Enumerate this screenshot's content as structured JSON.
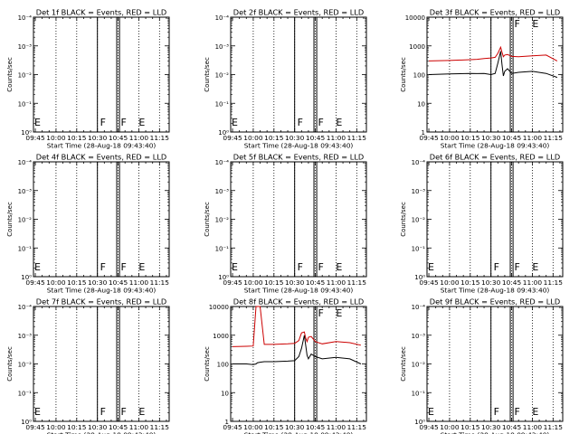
{
  "figure": {
    "x_ticks": [
      "09:45",
      "10:00",
      "10:15",
      "10:30",
      "10:45",
      "11:00",
      "11:15"
    ],
    "x_label": "Start Time (28-Aug-18 09:43:40)",
    "y_label": "Counts/sec",
    "log_tick_labels": [
      "1",
      "10",
      "100",
      "1000",
      "10000"
    ],
    "empty_tick_labels": [
      "10⁰",
      "10⁻¹",
      "10⁻²",
      "10⁻³",
      "10⁻⁴"
    ],
    "colors": {
      "events": "#000000",
      "lld": "#cc0000"
    }
  },
  "chart_data": [
    {
      "type": "line",
      "title": "Det 1f BLACK = Events, RED = LLD",
      "y_scale": "log",
      "has_data": false,
      "x": [],
      "series": [],
      "markers": [
        {
          "x": "10:30",
          "label": "F"
        },
        {
          "x": "10:45",
          "label": "F"
        },
        {
          "x": "10:58",
          "label": "E"
        },
        {
          "x": "09:43:40",
          "label": "E"
        }
      ]
    },
    {
      "type": "line",
      "title": "Det 2f BLACK = Events, RED = LLD",
      "y_scale": "log",
      "has_data": false,
      "x": [],
      "series": [],
      "markers": [
        {
          "x": "10:30",
          "label": "F"
        },
        {
          "x": "10:45",
          "label": "F"
        },
        {
          "x": "10:58",
          "label": "E"
        },
        {
          "x": "09:43:40",
          "label": "E"
        }
      ]
    },
    {
      "type": "line",
      "title": "Det 3f BLACK = Events, RED = LLD",
      "y_scale": "log",
      "ylim": [
        1,
        10000
      ],
      "has_data": true,
      "x": [
        "09:45",
        "10:00",
        "10:15",
        "10:20",
        "10:25",
        "10:30",
        "10:33",
        "10:35",
        "10:37",
        "10:38",
        "10:39",
        "10:40",
        "10:42",
        "10:45",
        "10:50",
        "11:00",
        "11:10",
        "11:18"
      ],
      "series": [
        {
          "values": [
            100,
            105,
            110,
            108,
            110,
            100,
            110,
            250,
            650,
            220,
            90,
            130,
            160,
            110,
            120,
            130,
            110,
            80
          ]
        },
        {
          "values": [
            300,
            310,
            330,
            340,
            360,
            380,
            400,
            550,
            900,
            600,
            420,
            480,
            500,
            430,
            420,
            450,
            480,
            300
          ]
        }
      ],
      "markers": [
        {
          "x": "10:30",
          "label": ""
        },
        {
          "x": "10:45",
          "label": "F"
        },
        {
          "x": "10:58",
          "label": "E"
        }
      ]
    },
    {
      "type": "line",
      "title": "Det 4f BLACK = Events, RED = LLD",
      "y_scale": "log",
      "has_data": false,
      "x": [],
      "series": [],
      "markers": [
        {
          "x": "10:30",
          "label": "F"
        },
        {
          "x": "10:45",
          "label": "F"
        },
        {
          "x": "10:58",
          "label": "E"
        },
        {
          "x": "09:43:40",
          "label": "E"
        }
      ]
    },
    {
      "type": "line",
      "title": "Det 5f BLACK = Events, RED = LLD",
      "y_scale": "log",
      "has_data": false,
      "x": [],
      "series": [],
      "markers": [
        {
          "x": "10:30",
          "label": "F"
        },
        {
          "x": "10:45",
          "label": "F"
        },
        {
          "x": "10:58",
          "label": "E"
        },
        {
          "x": "09:43:40",
          "label": "E"
        }
      ]
    },
    {
      "type": "line",
      "title": "Det 6f BLACK = Events, RED = LLD",
      "y_scale": "log",
      "has_data": false,
      "x": [],
      "series": [],
      "markers": [
        {
          "x": "10:30",
          "label": "F"
        },
        {
          "x": "10:45",
          "label": "F"
        },
        {
          "x": "10:58",
          "label": "E"
        },
        {
          "x": "09:43:40",
          "label": "E"
        }
      ]
    },
    {
      "type": "line",
      "title": "Det 7f BLACK = Events, RED = LLD",
      "y_scale": "log",
      "has_data": false,
      "x": [],
      "series": [],
      "markers": [
        {
          "x": "10:30",
          "label": "F"
        },
        {
          "x": "10:45",
          "label": "F"
        },
        {
          "x": "10:58",
          "label": "E"
        },
        {
          "x": "09:43:40",
          "label": "E"
        }
      ]
    },
    {
      "type": "line",
      "title": "Det 8f BLACK = Events, RED = LLD",
      "y_scale": "log",
      "ylim": [
        1,
        10000
      ],
      "has_data": true,
      "x": [
        "09:45",
        "09:55",
        "10:00",
        "10:02",
        "10:03",
        "10:05",
        "10:08",
        "10:15",
        "10:25",
        "10:30",
        "10:33",
        "10:35",
        "10:37",
        "10:38",
        "10:39",
        "10:40",
        "10:42",
        "10:45",
        "10:50",
        "11:00",
        "11:10",
        "11:18"
      ],
      "series": [
        {
          "values": [
            100,
            100,
            95,
            100,
            110,
            115,
            120,
            120,
            125,
            130,
            180,
            350,
            1000,
            450,
            200,
            150,
            220,
            180,
            150,
            170,
            150,
            100
          ]
        },
        {
          "values": [
            400,
            410,
            420,
            10000,
            10000,
            10000,
            480,
            480,
            500,
            520,
            650,
            1200,
            1300,
            800,
            600,
            850,
            900,
            600,
            500,
            600,
            550,
            450
          ]
        }
      ],
      "markers": [
        {
          "x": "10:30",
          "label": ""
        },
        {
          "x": "10:45",
          "label": "F"
        },
        {
          "x": "10:58",
          "label": "E"
        }
      ]
    },
    {
      "type": "line",
      "title": "Det 9f BLACK = Events, RED = LLD",
      "y_scale": "log",
      "has_data": false,
      "x": [],
      "series": [],
      "markers": [
        {
          "x": "10:30",
          "label": "F"
        },
        {
          "x": "10:45",
          "label": "F"
        },
        {
          "x": "10:58",
          "label": "E"
        },
        {
          "x": "09:43:40",
          "label": "E"
        }
      ]
    }
  ]
}
